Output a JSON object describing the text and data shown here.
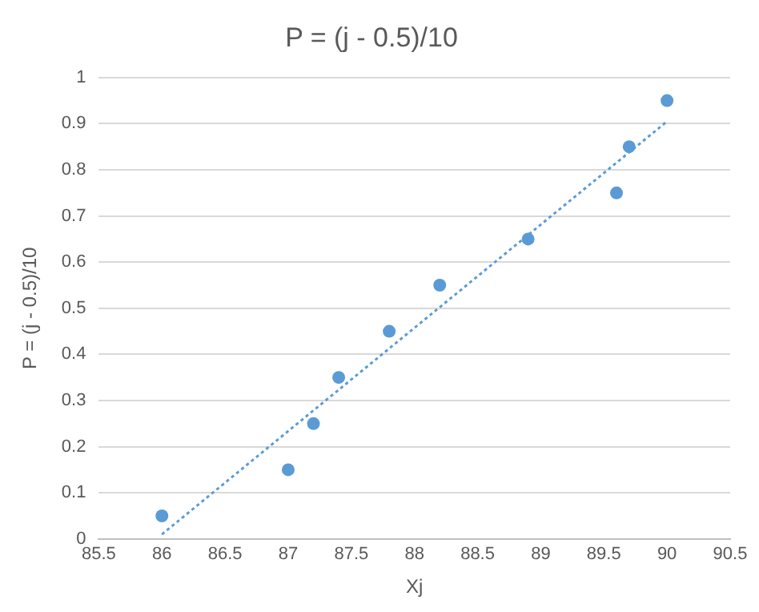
{
  "chart_data": {
    "type": "scatter",
    "title": "P = (j - 0.5)/10",
    "xlabel": "Xj",
    "ylabel": "P = (j - 0.5)/10",
    "x": [
      86,
      87,
      87.2,
      87.4,
      87.8,
      88.2,
      88.9,
      89.6,
      89.7,
      90
    ],
    "series": [
      {
        "color": "#5b9bd5",
        "values": [
          0.05,
          0.15,
          0.25,
          0.35,
          0.45,
          0.55,
          0.65,
          0.75,
          0.85,
          0.95
        ],
        "marker": "circle"
      },
      {
        "type": "line",
        "x": [
          86,
          90
        ],
        "values": [
          0.01,
          0.905
        ],
        "color": "#5b9bd5",
        "line_style": "dotted",
        "marker": "none"
      }
    ],
    "xlim": [
      85.5,
      90.5
    ],
    "xticks": [
      85.5,
      86,
      86.5,
      87,
      87.5,
      88,
      88.5,
      89,
      89.5,
      90,
      90.5
    ],
    "ylim": [
      0,
      1
    ],
    "yticks": [
      0,
      0.1,
      0.2,
      0.3,
      0.4,
      0.5,
      0.6,
      0.7,
      0.8,
      0.9,
      1
    ],
    "grid": "y",
    "legend": false
  }
}
